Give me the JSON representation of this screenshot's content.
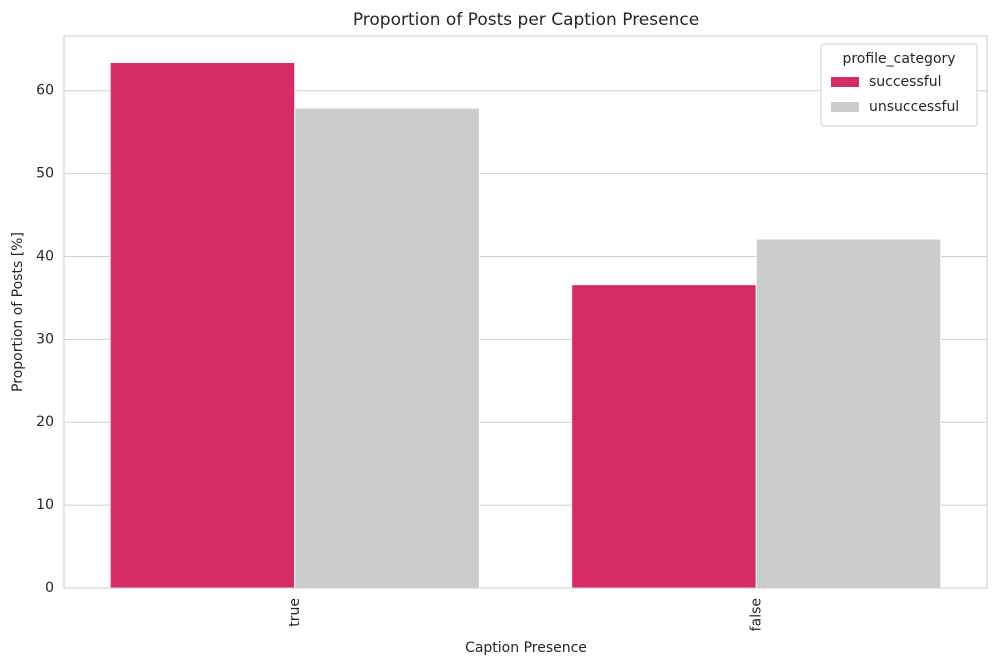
{
  "chart_data": {
    "type": "bar",
    "title": "Proportion of Posts per Caption Presence",
    "x_label": "Caption Presence",
    "y_label": "Proportion of Posts [%]",
    "categories": [
      "true",
      "false"
    ],
    "series": [
      {
        "name": "successful",
        "color": "#d62b67",
        "values": [
          63.4,
          36.6
        ]
      },
      {
        "name": "unsuccessful",
        "color": "#cccccc",
        "values": [
          57.9,
          42.1
        ]
      }
    ],
    "ylim": [
      0,
      66.6
    ],
    "yticks": [
      0,
      10,
      20,
      30,
      40,
      50,
      60
    ],
    "grid": true,
    "legend_title": "profile_category",
    "legend_position": "upper right"
  }
}
